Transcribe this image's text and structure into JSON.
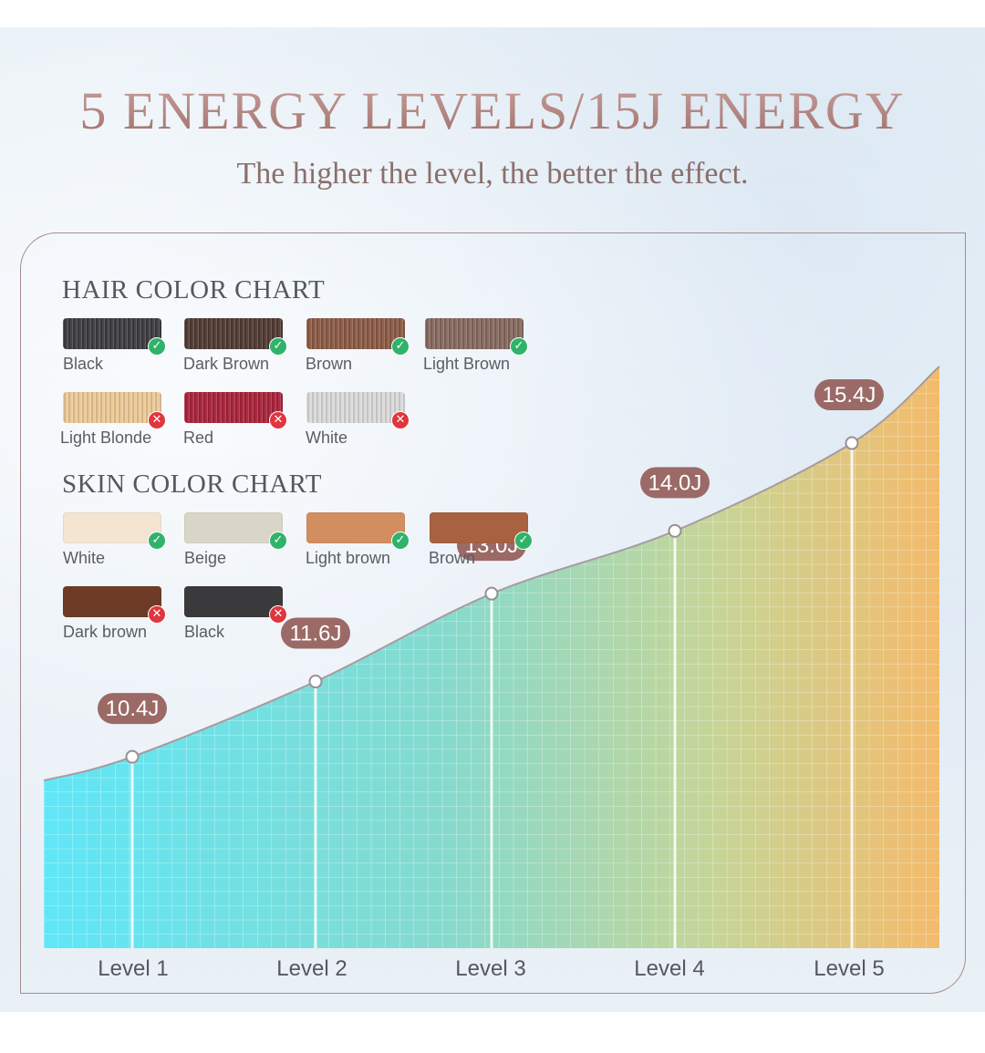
{
  "title": "5 ENERGY LEVELS/15J ENERGY",
  "subtitle": "The higher the level, the better the effect.",
  "hair_chart": {
    "title": "HAIR COLOR CHART",
    "items": [
      {
        "label": "Black",
        "color": "#3c3c3e",
        "ok": true
      },
      {
        "label": "Dark Brown",
        "color": "#4f3a31",
        "ok": true
      },
      {
        "label": "Brown",
        "color": "#8a5a45",
        "ok": true
      },
      {
        "label": "Light Brown",
        "color": "#85685e",
        "ok": true
      },
      {
        "label": "Light Blonde",
        "color": "#ecc996",
        "ok": false
      },
      {
        "label": "Red",
        "color": "#a9223a",
        "ok": false
      },
      {
        "label": "White",
        "color": "#d9d9da",
        "ok": false
      }
    ]
  },
  "skin_chart": {
    "title": "SKIN COLOR CHART",
    "items": [
      {
        "label": "White",
        "color": "#f3e5d2",
        "ok": true
      },
      {
        "label": "Beige",
        "color": "#d9d6c7",
        "ok": true
      },
      {
        "label": "Light brown",
        "color": "#d28e5f",
        "ok": true
      },
      {
        "label": "Brown",
        "color": "#a8623f",
        "ok": true
      },
      {
        "label": "Dark brown",
        "color": "#6e3c26",
        "ok": false
      },
      {
        "label": "Black",
        "color": "#3a3a3c",
        "ok": false
      }
    ]
  },
  "colors": {
    "accent": "#9b6a67",
    "curve_start": "#62e4f5",
    "curve_end": "#f2bd6e",
    "ok_badge": "#2fb36b",
    "no_badge": "#e0363e"
  },
  "chart_data": {
    "type": "area",
    "categories": [
      "Level 1",
      "Level 2",
      "Level 3",
      "Level 4",
      "Level 5"
    ],
    "values": [
      10.4,
      11.6,
      13.0,
      14.0,
      15.4
    ],
    "value_labels": [
      "10.4J",
      "11.6J",
      "13.0J",
      "14.0J",
      "15.4J"
    ],
    "unit": "J",
    "grid": true,
    "legend": "none"
  }
}
